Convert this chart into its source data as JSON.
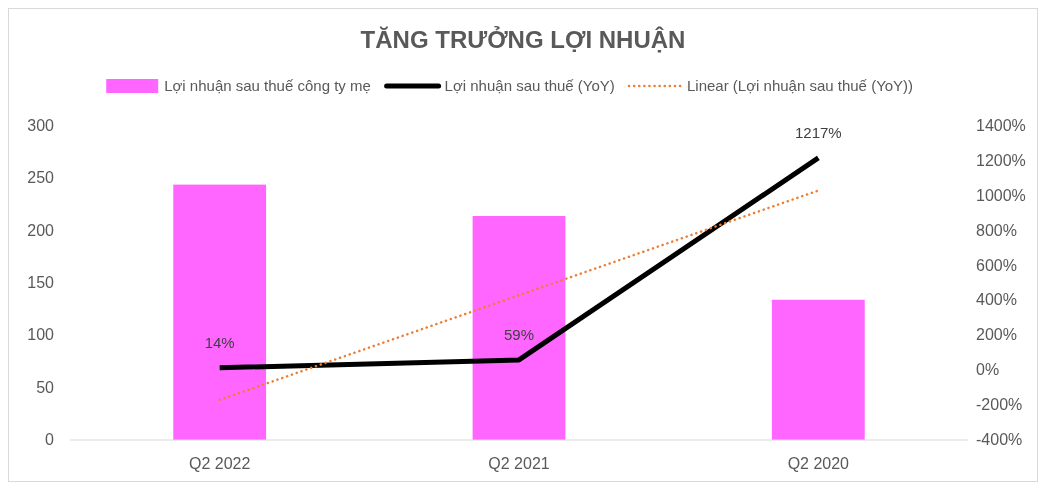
{
  "chart_data": {
    "type": "bar",
    "title": "TĂNG TRƯỞNG LỢI NHUẬN",
    "categories": [
      "Q2 2022",
      "Q2 2021",
      "Q2 2020"
    ],
    "series": [
      {
        "name": "Lợi nhuận sau thuế công ty mẹ",
        "color": "#ff66ff",
        "values": [
          244,
          214,
          134
        ]
      },
      {
        "name": "Lợi nhuận sau thuế (YoY)",
        "type": "line",
        "axis": "y2",
        "color": "#000000",
        "values": [
          14,
          59,
          1217
        ],
        "value_labels": [
          "14%",
          "59%",
          "1217%"
        ],
        "line_style": "solid"
      },
      {
        "name": "Linear (Lợi nhuận sau thuế (YoY))",
        "type": "line",
        "axis": "y2",
        "color": "#ed7d31",
        "values": [
          -170,
          430,
          1030
        ],
        "line_style": "dotted"
      }
    ],
    "ylim": [
      0,
      300
    ],
    "yticks": [
      0,
      50,
      100,
      150,
      200,
      250,
      300
    ],
    "y2lim": [
      -400,
      1400
    ],
    "y2ticks": [
      {
        "value": -400,
        "label": "-400%"
      },
      {
        "value": -200,
        "label": "-200%"
      },
      {
        "value": 0,
        "label": "0%"
      },
      {
        "value": 200,
        "label": "200%"
      },
      {
        "value": 400,
        "label": "400%"
      },
      {
        "value": 600,
        "label": "600%"
      },
      {
        "value": 800,
        "label": "800%"
      },
      {
        "value": 1000,
        "label": "1000%"
      },
      {
        "value": 1200,
        "label": "1200%"
      },
      {
        "value": 1400,
        "label": "1400%"
      }
    ],
    "legend": "top",
    "grid": false,
    "marker": "none"
  }
}
